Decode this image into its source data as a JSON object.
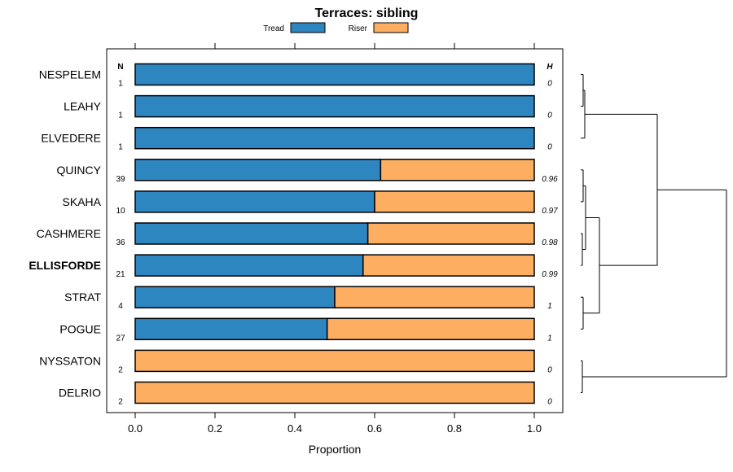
{
  "chart_data": {
    "type": "bar",
    "title": "Terraces: sibling",
    "xlabel": "Proportion",
    "ylabel": "",
    "xlim": [
      0,
      1
    ],
    "x_ticks": [
      "0.0",
      "0.2",
      "0.4",
      "0.6",
      "0.8",
      "1.0"
    ],
    "legend": [
      {
        "name": "Tread",
        "color": "#2e86c1"
      },
      {
        "name": "Riser",
        "color": "#fdae61"
      }
    ],
    "n_header": "N",
    "h_header": "H",
    "categories": [
      "NESPELEM",
      "LEAHY",
      "ELVEDERE",
      "QUINCY",
      "SKAHA",
      "CASHMERE",
      "ELLISFORDE",
      "STRAT",
      "POGUE",
      "NYSSATON",
      "DELRIO"
    ],
    "highlighted": "ELLISFORDE",
    "n_values": [
      "1",
      "1",
      "1",
      "39",
      "10",
      "36",
      "21",
      "4",
      "27",
      "2",
      "2"
    ],
    "h_values": [
      "0",
      "0",
      "0",
      "0.96",
      "0.97",
      "0.98",
      "0.99",
      "1",
      "1",
      "0",
      "0"
    ],
    "series": [
      {
        "name": "Tread",
        "values": [
          1.0,
          1.0,
          1.0,
          0.615,
          0.6,
          0.583,
          0.571,
          0.5,
          0.481,
          0.0,
          0.0
        ]
      },
      {
        "name": "Riser",
        "values": [
          0.0,
          0.0,
          0.0,
          0.385,
          0.4,
          0.417,
          0.429,
          0.5,
          0.519,
          1.0,
          1.0
        ]
      }
    ],
    "stacked": true,
    "dendrogram": {
      "leaves": [
        "NESPELEM",
        "LEAHY",
        "ELVEDERE",
        "QUINCY",
        "SKAHA",
        "CASHMERE",
        "ELLISFORDE",
        "STRAT",
        "POGUE",
        "NYSSATON",
        "DELRIO"
      ],
      "merges": [
        {
          "a": "NESPELEM",
          "b": "LEAHY",
          "height": 0.02
        },
        {
          "a": "LEAHY",
          "b": "ELVEDERE",
          "height": 0.01
        },
        {
          "a": "QUINCY",
          "b": "SKAHA",
          "height": 0.03
        },
        {
          "a": "CASHMERE",
          "b": "ELLISFORDE",
          "height": 0.02
        },
        {
          "a": "STRAT",
          "b": "POGUE",
          "height": 0.03
        },
        {
          "a": "NYSSATON",
          "b": "DELRIO",
          "height": 0.01
        }
      ]
    }
  }
}
